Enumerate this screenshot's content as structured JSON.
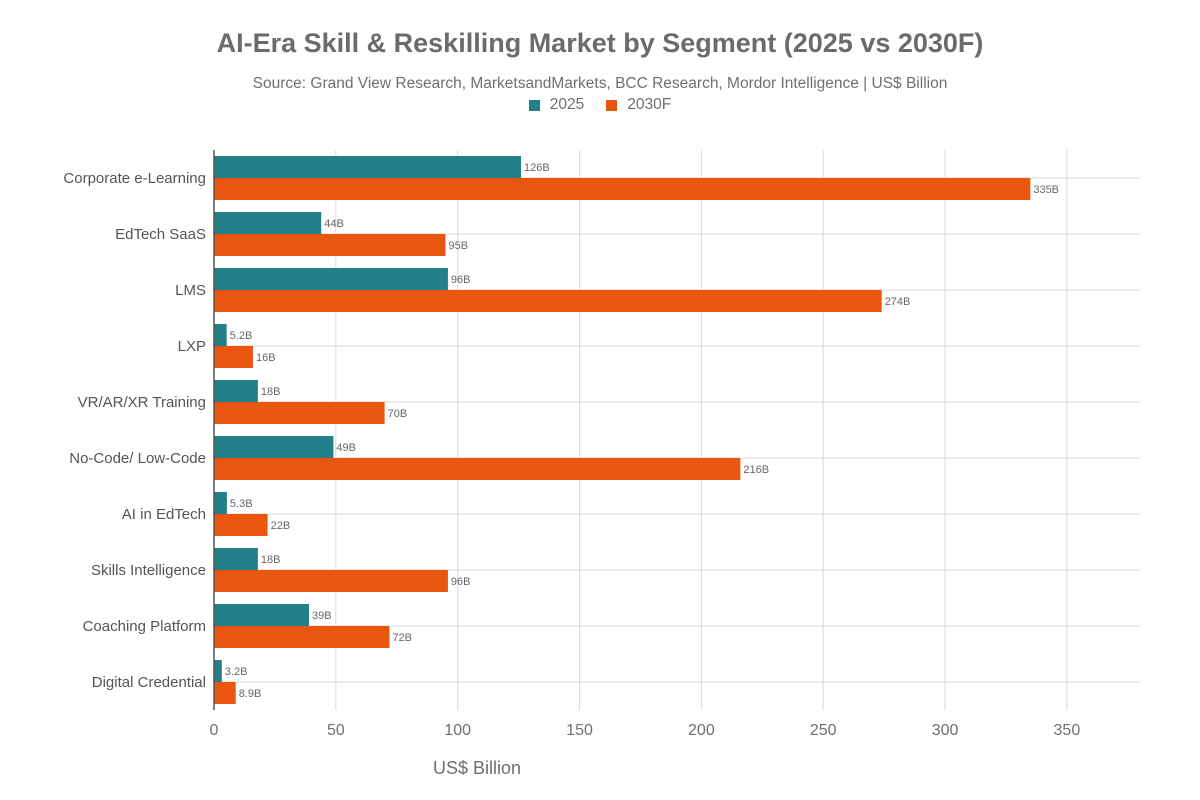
{
  "chart_data": {
    "type": "bar",
    "orientation": "horizontal",
    "title": "AI-Era Skill & Reskilling Market by Segment (2025 vs 2030F)",
    "subtitle": "Source: Grand View Research, MarketsandMarkets, BCC Research, Mordor Intelligence | US$ Billion",
    "xlabel": "US$ Billion",
    "ylabel": "",
    "xlim": [
      0,
      380
    ],
    "xticks": [
      0,
      50,
      100,
      150,
      200,
      250,
      300,
      350
    ],
    "grid": true,
    "legend_position": "top-center",
    "categories": [
      "Corporate e-Learning",
      "EdTech SaaS",
      "LMS",
      "LXP",
      "VR/AR/XR Training",
      "No-Code/ Low-Code",
      "AI in EdTech",
      "Skills Intelligence",
      "Coaching Platform",
      "Digital Credential"
    ],
    "series": [
      {
        "name": "2025",
        "color": "#23808a",
        "values": [
          126,
          44,
          96,
          5.2,
          18,
          49,
          5.3,
          18,
          39,
          3.2
        ],
        "labels": [
          "126B",
          "44B",
          "96B",
          "5.2B",
          "18B",
          "49B",
          "5.3B",
          "18B",
          "39B",
          "3.2B"
        ]
      },
      {
        "name": "2030F",
        "color": "#e8560f",
        "values": [
          335,
          95,
          274,
          16,
          70,
          216,
          22,
          96,
          72,
          8.9
        ],
        "labels": [
          "335B",
          "95B",
          "274B",
          "16B",
          "70B",
          "216B",
          "22B",
          "96B",
          "72B",
          "8.9B"
        ]
      }
    ]
  }
}
